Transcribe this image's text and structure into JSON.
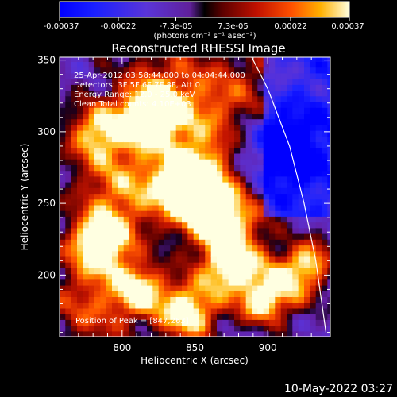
{
  "title": "Reconstructed RHESSI Image",
  "timestamp": "10-May-2022 03:27",
  "colorbar": {
    "ticks": [
      "-0.00037",
      "-0.00022",
      "-7.3e-05",
      "7.3e-05",
      "0.00022",
      "0.00037"
    ],
    "tick_values": [
      -0.00037,
      -0.00022,
      -7.3e-05,
      7.3e-05,
      0.00022,
      0.00037
    ],
    "range": [
      -0.00037,
      0.00037
    ],
    "unit_label": "(photons cm⁻² s⁻¹ asec⁻²)"
  },
  "info_lines": [
    "25-Apr-2012 03:58:44.000 to 04:04:44.000",
    "Detectors: 3F 5F 6F 7F 8F, Att 0",
    "Energy Range: 12.0 - 25.0 keV",
    "Clean    Total counts: 4.10E+03"
  ],
  "peak_label": "Position of Peak = [847,263]",
  "chart_data": {
    "type": "heatmap",
    "title": "Reconstructed RHESSI Image",
    "xlabel": "Heliocentric X (arcsec)",
    "ylabel": "Heliocentric Y (arcsec)",
    "xlim": [
      757,
      943
    ],
    "ylim": [
      157,
      352
    ],
    "xticks": [
      800,
      850,
      900
    ],
    "yticks": [
      200,
      250,
      300,
      350
    ],
    "peak": [
      847,
      263
    ],
    "limb_curve": [
      [
        889,
        352
      ],
      [
        900,
        330
      ],
      [
        915,
        290
      ],
      [
        925,
        250
      ],
      [
        933,
        210
      ],
      [
        940,
        160
      ]
    ],
    "bright_sources": [
      {
        "x": 847,
        "y": 263
      },
      {
        "x": 818,
        "y": 310
      },
      {
        "x": 783,
        "y": 300
      },
      {
        "x": 785,
        "y": 222
      },
      {
        "x": 870,
        "y": 240
      },
      {
        "x": 875,
        "y": 205
      },
      {
        "x": 845,
        "y": 175
      },
      {
        "x": 912,
        "y": 195
      },
      {
        "x": 812,
        "y": 190
      },
      {
        "x": 895,
        "y": 180
      },
      {
        "x": 930,
        "y": 210
      }
    ],
    "colormap": "blue-purple-red-yellow-white"
  }
}
